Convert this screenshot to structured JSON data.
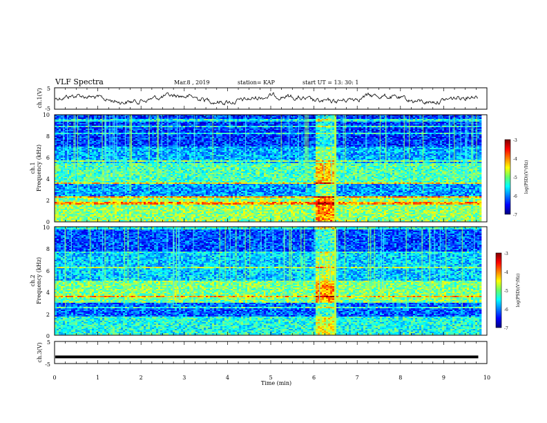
{
  "header": {
    "title": "VLF  Spectra",
    "date": "Mar.8  , 2019",
    "station": "station= KAP",
    "start_ut": "start  UT  =   13: 30: 1"
  },
  "chart_data": [
    {
      "type": "line",
      "panel": "ch1-waveform",
      "ylabel": "ch.1(V)",
      "ytick_labels": [
        "5",
        "-5"
      ],
      "ylim": [
        -5,
        5
      ],
      "xlim": [
        0,
        10
      ],
      "data_extent_min": 9.8,
      "series": [
        {
          "values_note_omitted": true
        }
      ]
    },
    {
      "type": "heatmap",
      "panel": "ch1-spectrogram",
      "ylabel_line1": "ch.1",
      "ylabel_line2": "Frequency  (kHz)",
      "ytick_labels": [
        "10",
        "8",
        "6",
        "4",
        "2",
        "0"
      ],
      "ylim": [
        0,
        10
      ],
      "xlim": [
        0,
        10
      ],
      "colorbar": {
        "label": "log(PSD)(V²/Hz)",
        "range": [
          -7,
          -3
        ],
        "tick_labels": [
          "-3",
          "-4",
          "-5",
          "-6",
          "-7"
        ]
      }
    },
    {
      "type": "heatmap",
      "panel": "ch2-spectrogram",
      "ylabel_line1": "ch.2",
      "ylabel_line2": "Frequency  (kHz)",
      "ytick_labels": [
        "10",
        "8",
        "6",
        "4",
        "2",
        "0"
      ],
      "ylim": [
        0,
        10
      ],
      "xlim": [
        0,
        10
      ],
      "colorbar": {
        "label": "log(PSD)(V²/Hz)",
        "range": [
          -7,
          -3
        ],
        "tick_labels": [
          "-3",
          "-4",
          "-5",
          "-6",
          "-7"
        ]
      }
    },
    {
      "type": "line",
      "panel": "ch3-waveform",
      "ylabel": "ch.3(V)",
      "ytick_labels": [
        "5",
        "-5"
      ],
      "ylim": [
        -5,
        5
      ],
      "xlim": [
        0,
        10
      ],
      "series": [
        {
          "values": [
            -2,
            -2
          ]
        }
      ]
    }
  ],
  "xaxis": {
    "label": "Time  (min)",
    "tick_labels": [
      "0",
      "1",
      "2",
      "3",
      "4",
      "5",
      "6",
      "7",
      "8",
      "9",
      "10"
    ]
  }
}
